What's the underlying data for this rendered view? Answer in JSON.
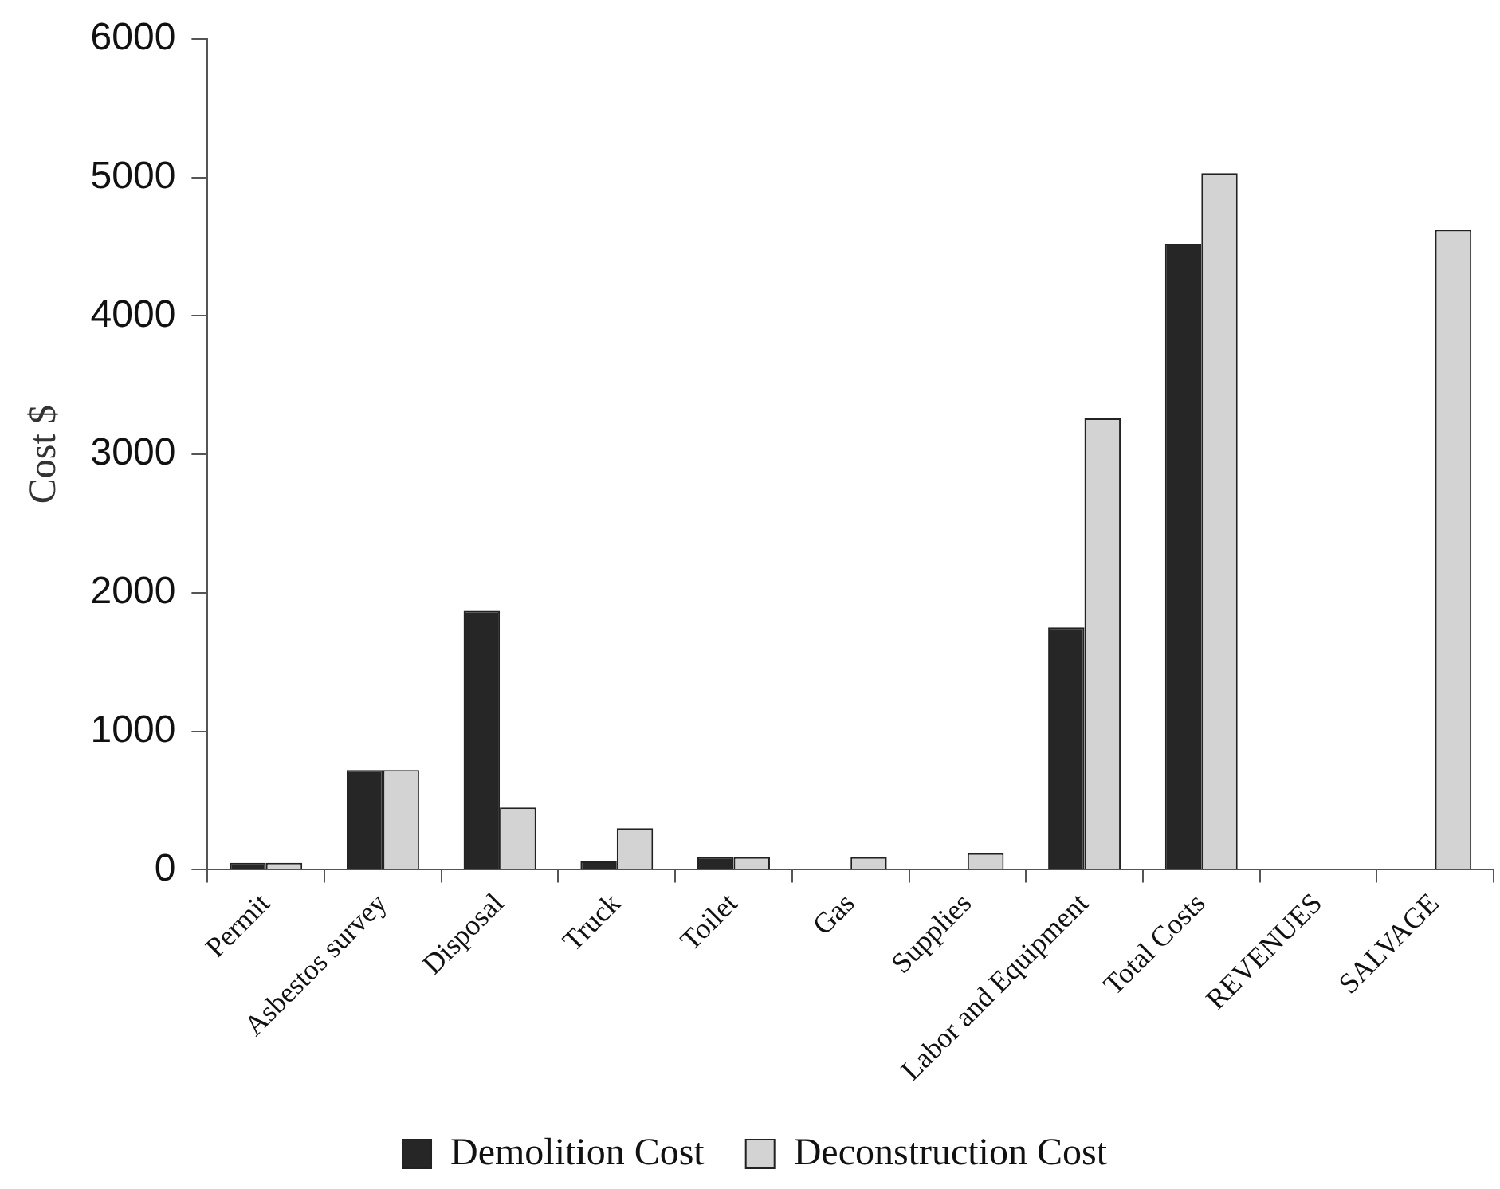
{
  "chart_data": {
    "type": "bar",
    "ylabel": "Cost $",
    "categories": [
      "Permit",
      "Asbestos survey",
      "Disposal",
      "Truck",
      "Toilet",
      "Gas",
      "Supplies",
      "Labor and Equipment",
      "Total Costs",
      "REVENUES",
      "SALVAGE"
    ],
    "series": [
      {
        "name": "Demolition Cost",
        "color": "#262626",
        "values": [
          50,
          720,
          1870,
          60,
          90,
          0,
          0,
          1750,
          4520,
          0,
          0
        ]
      },
      {
        "name": "Deconstruction Cost",
        "color": "#d3d3d3",
        "values": [
          50,
          720,
          450,
          300,
          90,
          90,
          120,
          3260,
          5030,
          0,
          4620
        ]
      }
    ],
    "ylim": [
      0,
      6000
    ],
    "yticks": [
      0,
      1000,
      2000,
      3000,
      4000,
      5000,
      6000
    ],
    "grid": false,
    "legend": "bottom"
  }
}
